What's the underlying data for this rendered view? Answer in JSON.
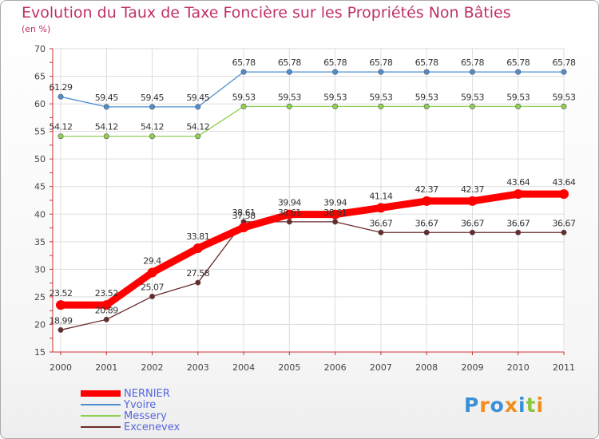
{
  "title": "Evolution du Taux de Taxe Foncière sur les Propriétés Non Bâties",
  "subtitle": "(en %)",
  "logo": "Proxiti",
  "chart_data": {
    "type": "line",
    "title": "Evolution du Taux de Taxe Foncière sur les Propriétés Non Bâties",
    "ylabel": "(en %)",
    "xlabel": "",
    "ylim": [
      15,
      70
    ],
    "yticks": [
      15,
      20,
      25,
      30,
      35,
      40,
      45,
      50,
      55,
      60,
      65,
      70
    ],
    "categories": [
      "2000",
      "2001",
      "2002",
      "2003",
      "2004",
      "2005",
      "2006",
      "2007",
      "2008",
      "2009",
      "2010",
      "2011"
    ],
    "grid": true,
    "series": [
      {
        "name": "NERNIER",
        "color": "#ff0000",
        "values": [
          23.52,
          23.52,
          29.4,
          33.81,
          37.58,
          39.94,
          39.94,
          41.14,
          42.37,
          42.37,
          43.64,
          43.64
        ],
        "labels": [
          "23.52",
          "23.52",
          "29.4",
          "33.81",
          "37.58",
          "39.94",
          "39.94",
          "41.14",
          "42.37",
          "42.37",
          "43.64",
          "43.64"
        ]
      },
      {
        "name": "Yvoire",
        "color": "#4f8ed0",
        "values": [
          61.29,
          59.45,
          59.45,
          59.45,
          65.78,
          65.78,
          65.78,
          65.78,
          65.78,
          65.78,
          65.78,
          65.78
        ],
        "labels": [
          "61.29",
          "59.45",
          "59.45",
          "59.45",
          "65.78",
          "65.78",
          "65.78",
          "65.78",
          "65.78",
          "65.78",
          "65.78",
          "65.78"
        ]
      },
      {
        "name": "Messery",
        "color": "#90d050",
        "values": [
          54.12,
          54.12,
          54.12,
          54.12,
          59.53,
          59.53,
          59.53,
          59.53,
          59.53,
          59.53,
          59.53,
          59.53
        ],
        "labels": [
          "54.12",
          "54.12",
          "54.12",
          "54.12",
          "59.53",
          "59.53",
          "59.53",
          "59.53",
          "59.53",
          "59.53",
          "59.53",
          "59.53"
        ]
      },
      {
        "name": "Excenevex",
        "color": "#6b2a2a",
        "values": [
          18.99,
          20.89,
          25.07,
          27.58,
          38.61,
          38.61,
          38.61,
          36.67,
          36.67,
          36.67,
          36.67,
          36.67
        ],
        "labels": [
          "18.99",
          "20.89",
          "25.07",
          "27.58",
          "38.61",
          "38.61",
          "38.61",
          "36.67",
          "36.67",
          "36.67",
          "36.67",
          "36.67"
        ]
      }
    ]
  }
}
